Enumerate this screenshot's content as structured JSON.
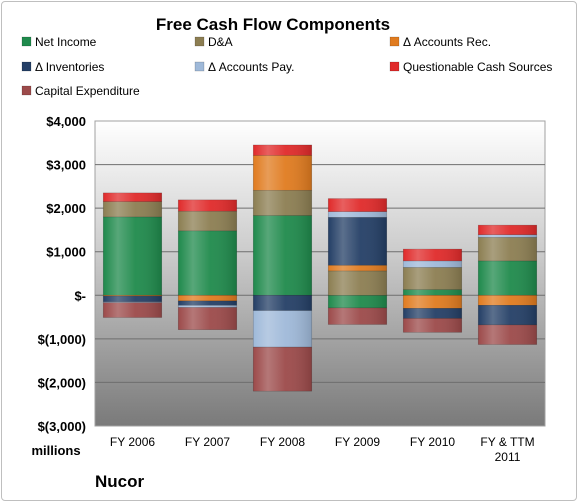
{
  "chart_data": {
    "type": "bar",
    "stacked": true,
    "title": "Free Cash Flow Components",
    "ylabel": "",
    "unit_label": "millions",
    "company": "Nucor",
    "ylim": [
      -3000,
      4000
    ],
    "yticks": [
      4000,
      3000,
      2000,
      1000,
      0,
      -1000,
      -2000,
      -3000
    ],
    "ytick_labels": [
      "$4,000",
      "$3,000",
      "$2,000",
      "$1,000",
      "$-",
      "$(1,000)",
      "$(2,000)",
      "$(3,000)"
    ],
    "categories": [
      "FY 2006",
      "FY 2007",
      "FY 2008",
      "FY 2009",
      "FY 2010",
      "FY & TTM 2011"
    ],
    "legend_position": "top",
    "grid": true,
    "series": [
      {
        "name": "Net Income",
        "color": "#1f8a4c",
        "values": [
          1800,
          1480,
          1830,
          -290,
          130,
          790
        ]
      },
      {
        "name": "D&A",
        "color": "#8c7e52",
        "values": [
          350,
          450,
          580,
          560,
          510,
          540
        ]
      },
      {
        "name": "Δ Accounts Rec.",
        "color": "#e07b1f",
        "values": [
          -20,
          -130,
          800,
          130,
          -300,
          -230
        ]
      },
      {
        "name": "Δ Inventories",
        "color": "#243f66",
        "values": [
          -130,
          -100,
          -350,
          1100,
          -230,
          -450
        ]
      },
      {
        "name": "Δ Accounts Pay.",
        "color": "#9fb9d9",
        "values": [
          -20,
          -50,
          -840,
          130,
          150,
          60
        ]
      },
      {
        "name": "Questionable Cash Sources",
        "color": "#e02a2a",
        "values": [
          200,
          260,
          240,
          300,
          270,
          220
        ]
      },
      {
        "name": "Capital Expenditure",
        "color": "#9c4a4a",
        "values": [
          -340,
          -510,
          -1010,
          -380,
          -320,
          -450
        ]
      }
    ]
  }
}
